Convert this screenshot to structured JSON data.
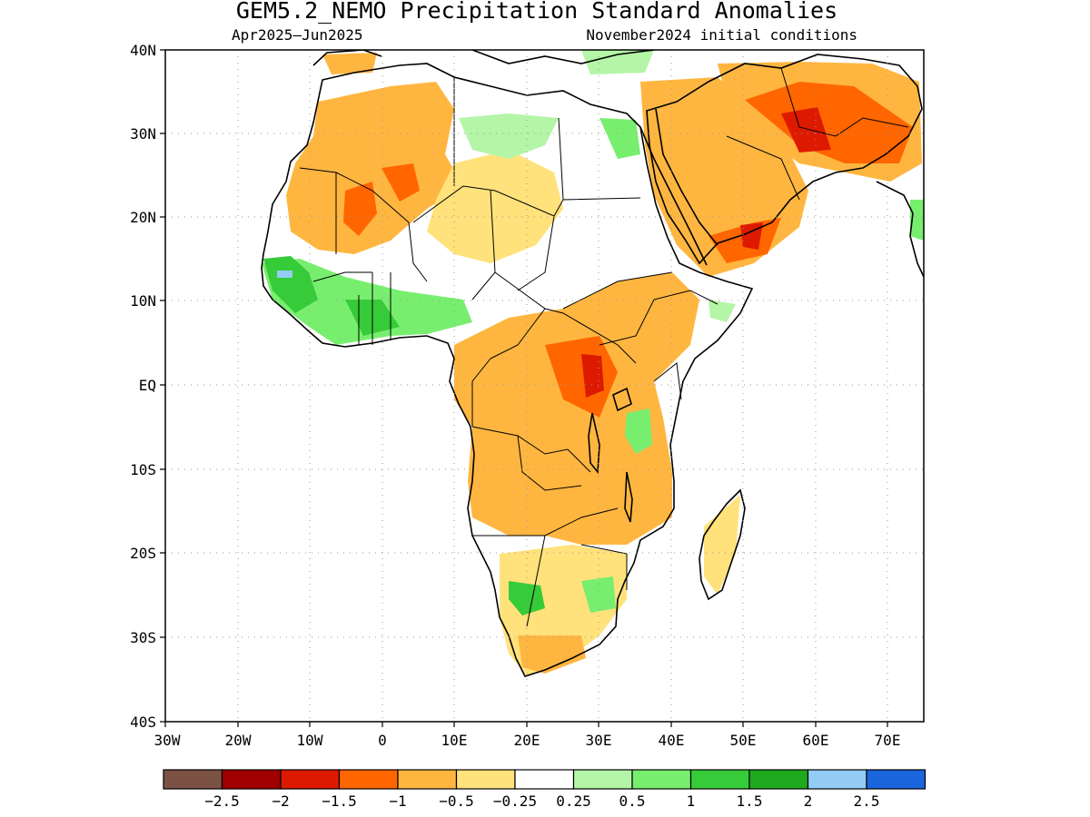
{
  "title": "GEM5.2_NEMO Precipitation Standard Anomalies",
  "subtitle_left": "Apr2025–Jun2025",
  "subtitle_right": "November2024 initial conditions",
  "map": {
    "region": "Africa and Middle East",
    "projection": "lat-lon",
    "lon_range": [
      -30,
      75
    ],
    "lat_range": [
      -40,
      40
    ],
    "lat_ticks": [
      "40N",
      "30N",
      "20N",
      "10N",
      "EQ",
      "10S",
      "20S",
      "30S",
      "40S"
    ],
    "lon_ticks": [
      "30W",
      "20W",
      "10W",
      "0",
      "10E",
      "20E",
      "30E",
      "40E",
      "50E",
      "60E",
      "70E"
    ],
    "grid": "dotted"
  },
  "colorbar": {
    "colors": [
      "#7b5243",
      "#a10000",
      "#dd1a00",
      "#ff6600",
      "#ffb640",
      "#ffe27b",
      "#ffffff",
      "#b4f5a7",
      "#78ee6f",
      "#36cb38",
      "#1fa91f",
      "#93ccf5",
      "#1b65dd"
    ],
    "labels": [
      "−2.5",
      "−2",
      "−1.5",
      "−1",
      "−0.5",
      "−0.25",
      "0.25",
      "0.5",
      "1",
      "1.5",
      "2",
      "2.5"
    ]
  }
}
